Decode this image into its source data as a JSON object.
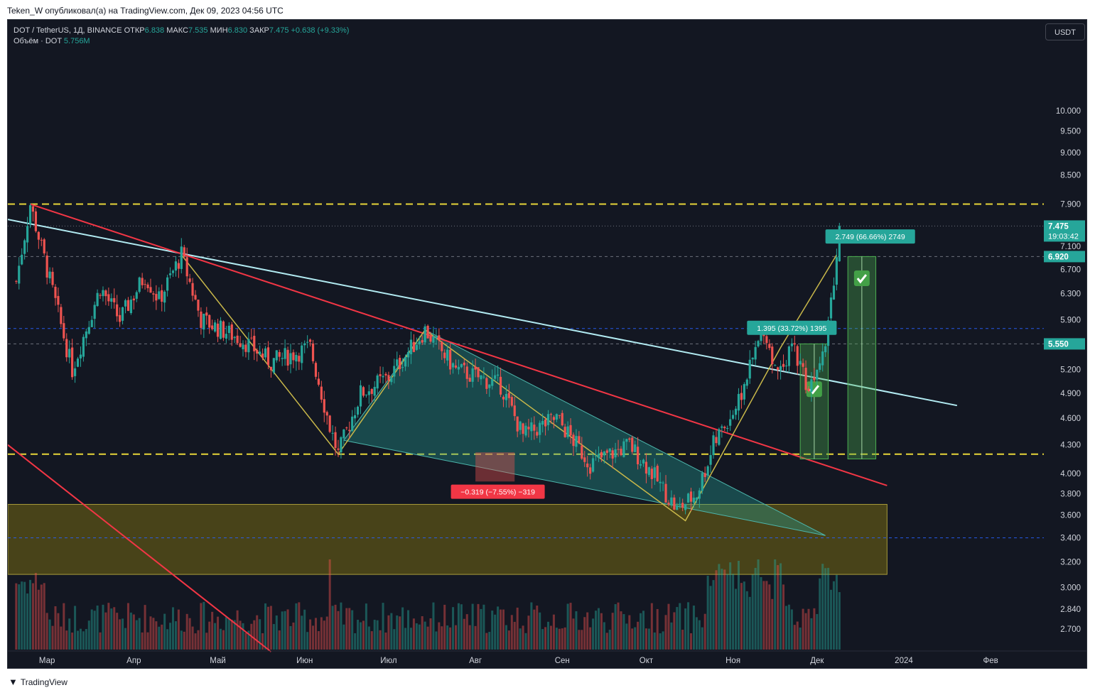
{
  "caption": "Teken_W опубликовал(а) на TradingView.com, Дек 09, 2023 04:56 UTC",
  "legend": {
    "symbol": "DOT / TetherUS, 1Д, BINANCE",
    "open_label": "ОТКР",
    "open": "6.838",
    "high_label": "МАКС",
    "high": "7.535",
    "low_label": "МИН",
    "low": "6.830",
    "close_label": "ЗАКР",
    "close": "7.475",
    "change": "+0.638 (+9.33%)",
    "volume_label": "Объём · DOT",
    "volume": "5.756M"
  },
  "currency_button": "USDT",
  "footer": {
    "brand": "TradingView",
    "logo_icon": "tradingview-logo-icon"
  },
  "colors": {
    "background": "#131722",
    "up": "#26a69a",
    "down": "#ef5350",
    "level_line": "#ffeb3b",
    "trendline_red": "#f23645",
    "trendline_light": "#b2ebf2",
    "zigzag": "#c9b84a",
    "wedge_fill": "#26a69a",
    "zone_fill": "#8a7a10",
    "target_box": "#4caf50",
    "text": "#d1d4dc"
  },
  "chart_data": {
    "type": "candlestick",
    "title": "DOT / TetherUS, 1Д, BINANCE",
    "y_scale": "log",
    "ylim": [
      2.55,
      11.3
    ],
    "y_ticks": [
      "10.000",
      "9.500",
      "9.000",
      "8.500",
      "7.900",
      "7.100",
      "6.700",
      "6.300",
      "5.900",
      "5.200",
      "4.900",
      "4.600",
      "4.300",
      "4.000",
      "3.800",
      "3.600",
      "3.400",
      "3.200",
      "3.000",
      "2.840",
      "2.700"
    ],
    "x_ticks": [
      "Мар",
      "Апр",
      "Май",
      "Июн",
      "Июл",
      "Авг",
      "Сен",
      "Окт",
      "Ноя",
      "Дек",
      "2024",
      "Фев"
    ],
    "x_range": [
      "2023-02-15",
      "2024-02-20"
    ],
    "price_labels": [
      {
        "text": "7.475",
        "sub": "19:03:42",
        "color": "#26a69a"
      },
      {
        "text": "6.920",
        "color": "#26a69a"
      },
      {
        "text": "5.550",
        "color": "#26a69a"
      }
    ],
    "last_price": 7.475,
    "anchors": [
      [
        "2023-02-18",
        6.5
      ],
      [
        "2023-02-23",
        7.9
      ],
      [
        "2023-03-01",
        6.7
      ],
      [
        "2023-03-10",
        5.2
      ],
      [
        "2023-03-20",
        6.4
      ],
      [
        "2023-03-27",
        5.9
      ],
      [
        "2023-04-05",
        6.6
      ],
      [
        "2023-04-10",
        6.2
      ],
      [
        "2023-04-18",
        6.95
      ],
      [
        "2023-04-25",
        5.9
      ],
      [
        "2023-05-10",
        5.6
      ],
      [
        "2023-05-20",
        5.3
      ],
      [
        "2023-06-03",
        5.5
      ],
      [
        "2023-06-10",
        4.5
      ],
      [
        "2023-06-13",
        4.2
      ],
      [
        "2023-06-21",
        4.9
      ],
      [
        "2023-07-01",
        5.1
      ],
      [
        "2023-07-14",
        5.75
      ],
      [
        "2023-07-25",
        5.2
      ],
      [
        "2023-08-10",
        5.0
      ],
      [
        "2023-08-18",
        4.4
      ],
      [
        "2023-08-30",
        4.6
      ],
      [
        "2023-09-11",
        4.1
      ],
      [
        "2023-09-25",
        4.3
      ],
      [
        "2023-10-02",
        4.05
      ],
      [
        "2023-10-12",
        3.65
      ],
      [
        "2023-10-19",
        3.8
      ],
      [
        "2023-10-25",
        4.3
      ],
      [
        "2023-11-03",
        4.8
      ],
      [
        "2023-11-12",
        5.8
      ],
      [
        "2023-11-16",
        5.2
      ],
      [
        "2023-11-23",
        5.5
      ],
      [
        "2023-11-28",
        4.95
      ],
      [
        "2023-12-04",
        5.65
      ],
      [
        "2023-12-08",
        6.9
      ],
      [
        "2023-12-09",
        7.475
      ]
    ],
    "horizontal_levels": [
      {
        "price": 7.9,
        "style": "dashed",
        "color": "#ffeb3b"
      },
      {
        "price": 4.2,
        "style": "dashed",
        "color": "#ffeb3b"
      },
      {
        "price": 7.475,
        "style": "dotted",
        "color": "#787b86"
      },
      {
        "price": 6.92,
        "style": "dashed-fine",
        "color": "#787b86"
      },
      {
        "price": 5.55,
        "style": "dashed-fine",
        "color": "#787b86"
      },
      {
        "price": 5.77,
        "style": "dashed-fine",
        "color": "#2962ff"
      },
      {
        "price": 3.4,
        "style": "dashed-fine",
        "color": "#2962ff"
      }
    ],
    "zone": {
      "from": "2023-02-15",
      "to": "2023-12-26",
      "high": 3.7,
      "low": 3.1
    },
    "trendlines": [
      {
        "name": "light-trendline",
        "color": "#b2ebf2",
        "p1": [
          "2023-02-15",
          7.6
        ],
        "p2": [
          "2024-01-20",
          4.75
        ]
      },
      {
        "name": "red-trendline-upper",
        "color": "#f23645",
        "p1": [
          "2023-02-23",
          7.9
        ],
        "p2": [
          "2023-12-26",
          3.88
        ]
      },
      {
        "name": "red-trendline-lower",
        "color": "#f23645",
        "p1": [
          "2023-02-15",
          4.3
        ],
        "p2": [
          "2023-05-20",
          2.55
        ]
      }
    ],
    "zigzag": [
      [
        "2023-04-18",
        6.95
      ],
      [
        "2023-06-13",
        4.2
      ],
      [
        "2023-07-14",
        5.75
      ],
      [
        "2023-10-15",
        3.55
      ],
      [
        "2023-11-18",
        5.5
      ],
      [
        "2023-12-08",
        6.95
      ]
    ],
    "wedge": [
      [
        "2023-06-15",
        4.35
      ],
      [
        "2023-07-14",
        5.75
      ],
      [
        "2023-12-04",
        3.42
      ]
    ],
    "measurements": [
      {
        "text": "1.395 (33.72%) 1395",
        "kind": "up"
      },
      {
        "text": "2.749 (66.66%) 2749",
        "kind": "up"
      },
      {
        "text": "−0.319 (−7.55%) −319",
        "kind": "down"
      }
    ],
    "target_boxes": [
      {
        "from": "2023-11-25",
        "to": "2023-12-05",
        "top": 5.55,
        "bottom": 4.15
      },
      {
        "from": "2023-12-12",
        "to": "2023-12-22",
        "top": 6.92,
        "bottom": 4.15
      }
    ],
    "check_icon": "checkmark-icon"
  }
}
